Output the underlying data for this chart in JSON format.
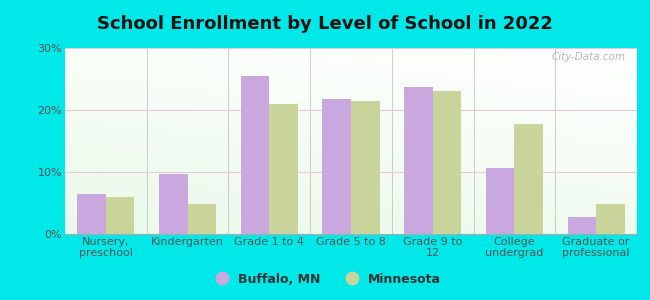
{
  "title": "School Enrollment by Level of School in 2022",
  "categories": [
    "Nursery,\npreschool",
    "Kindergarten",
    "Grade 1 to 4",
    "Grade 5 to 8",
    "Grade 9 to\n12",
    "College\nundergrad",
    "Graduate or\nprofessional"
  ],
  "buffalo_values": [
    6.5,
    9.7,
    25.5,
    21.8,
    23.7,
    10.7,
    2.7
  ],
  "minnesota_values": [
    6.0,
    4.8,
    21.0,
    21.4,
    23.0,
    17.8,
    4.9
  ],
  "buffalo_color": "#c9a8e0",
  "minnesota_color": "#c8d49a",
  "background_outer": "#00e8e8",
  "ylim": [
    0,
    30
  ],
  "yticks": [
    0,
    10,
    20,
    30
  ],
  "ytick_labels": [
    "0%",
    "10%",
    "20%",
    "30%"
  ],
  "legend_buffalo": "Buffalo, MN",
  "legend_minnesota": "Minnesota",
  "watermark": "City-Data.com",
  "title_fontsize": 13,
  "tick_fontsize": 8,
  "legend_fontsize": 9
}
